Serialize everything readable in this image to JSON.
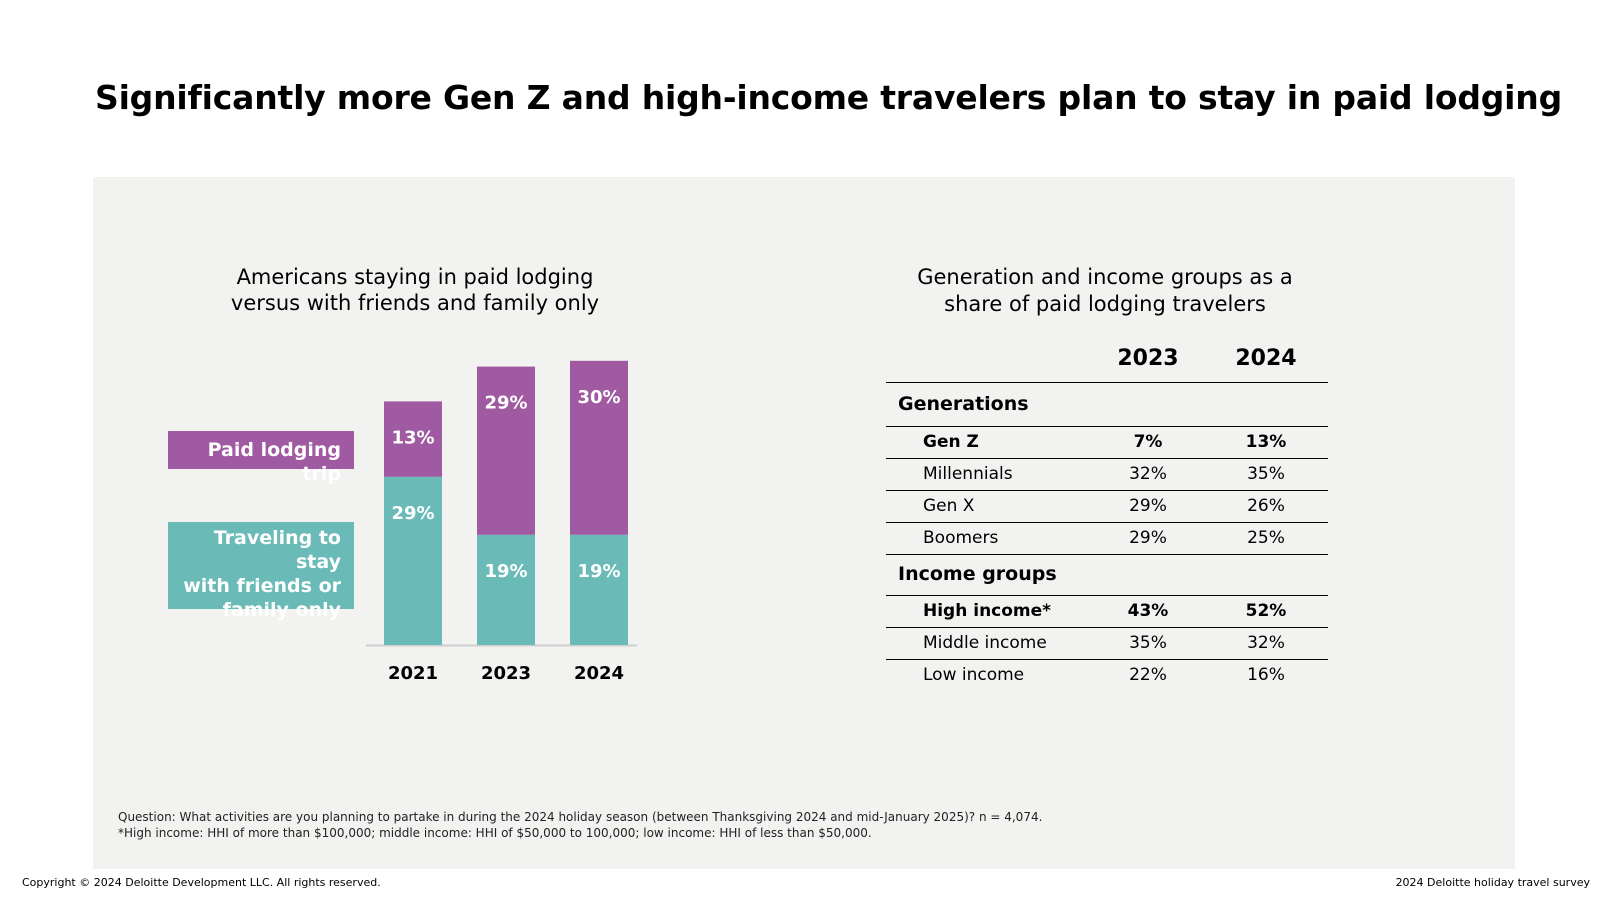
{
  "title": "Significantly more Gen Z and high-income travelers plan to stay in paid lodging",
  "colors": {
    "paid": "#a05aa2",
    "friends": "#6abab8",
    "panel": "#f2f2f1"
  },
  "chart_data": [
    {
      "type": "bar",
      "stacked": true,
      "title_lines": [
        "Americans staying in paid lodging",
        "versus with friends and family only"
      ],
      "categories": [
        "2021",
        "2023",
        "2024"
      ],
      "series": [
        {
          "name": "Traveling to stay with friends or family only",
          "values": [
            29,
            19,
            19
          ],
          "labels": [
            "29%",
            "19%",
            "19%"
          ]
        },
        {
          "name": "Paid lodging trip",
          "values": [
            13,
            29,
            30
          ],
          "labels": [
            "13%",
            "29%",
            "30%"
          ]
        }
      ],
      "legend": {
        "paid": "Paid lodging trip",
        "friends_lines": [
          "Traveling to stay",
          "with friends or",
          "family only"
        ]
      },
      "xlabel": "",
      "ylabel": "",
      "ylim": [
        0,
        50
      ]
    },
    {
      "type": "table",
      "title_lines": [
        "Generation and income groups as a",
        "share of paid lodging travelers"
      ],
      "columns": [
        "2023",
        "2024"
      ],
      "groups": [
        {
          "label": "Generations",
          "rows": [
            {
              "name": "Gen Z",
              "values": [
                "7%",
                "13%"
              ],
              "bold": true
            },
            {
              "name": "Millennials",
              "values": [
                "32%",
                "35%"
              ],
              "bold": false
            },
            {
              "name": "Gen X",
              "values": [
                "29%",
                "26%"
              ],
              "bold": false
            },
            {
              "name": "Boomers",
              "values": [
                "29%",
                "25%"
              ],
              "bold": false
            }
          ]
        },
        {
          "label": "Income groups",
          "rows": [
            {
              "name": "High income*",
              "values": [
                "43%",
                "52%"
              ],
              "bold": true
            },
            {
              "name": "Middle income",
              "values": [
                "35%",
                "32%"
              ],
              "bold": false
            },
            {
              "name": "Low income",
              "values": [
                "22%",
                "16%"
              ],
              "bold": false
            }
          ]
        }
      ]
    }
  ],
  "footnote": {
    "question": "Question: What activities are you planning to partake in during the 2024 holiday season (between Thanksgiving 2024 and mid-January 2025)? n = 4,074.",
    "income_note": "*High income: HHI of more than $100,000; middle income: HHI of $50,000 to 100,000; low income: HHI of less than $50,000."
  },
  "footer": {
    "copyright": "Copyright © 2024 Deloitte Development LLC. All rights reserved.",
    "survey": "2024 Deloitte holiday travel survey"
  }
}
